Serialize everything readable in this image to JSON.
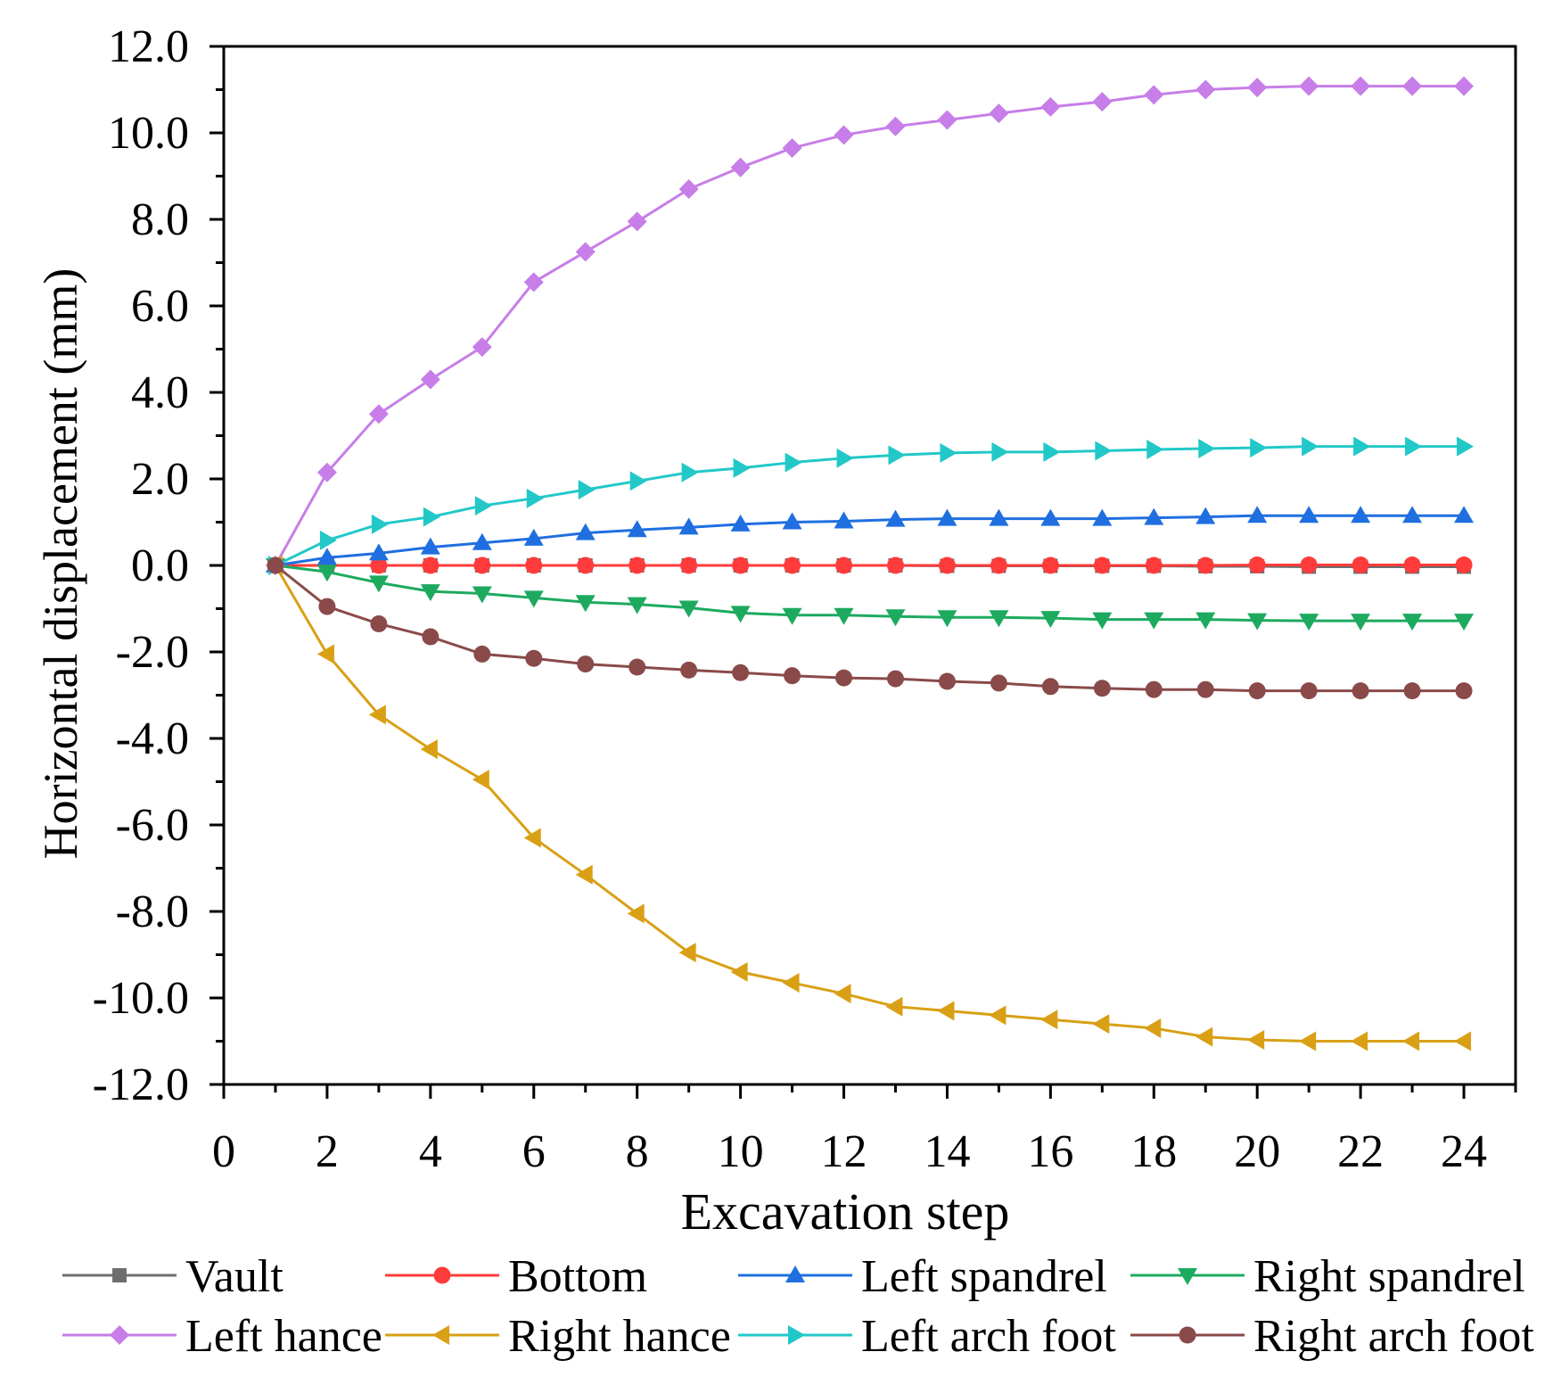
{
  "chart_data": {
    "type": "line",
    "title": "",
    "xlabel": "Excavation step",
    "ylabel": "Horizontal displacement (mm)",
    "xlim": [
      0,
      25
    ],
    "ylim": [
      -12,
      12
    ],
    "x_ticks": [
      0,
      2,
      4,
      6,
      8,
      10,
      12,
      14,
      16,
      18,
      20,
      22,
      24
    ],
    "x_tick_labels": [
      "0",
      "2",
      "4",
      "6",
      "8",
      "10",
      "12",
      "14",
      "16",
      "18",
      "20",
      "22",
      "24"
    ],
    "y_ticks": [
      12,
      10,
      8,
      6,
      4,
      2,
      0,
      -2,
      -4,
      -6,
      -8,
      -10,
      -12
    ],
    "y_tick_labels": [
      "12.0",
      "10.0",
      "8.0",
      "6.0",
      "4.0",
      "2.0",
      "0.0",
      "-2.0",
      "-4.0",
      "-6.0",
      "-8.0",
      "-10.0",
      "-12.0"
    ],
    "grid": false,
    "legend_position": "bottom",
    "x": [
      1,
      2,
      3,
      4,
      5,
      6,
      7,
      8,
      9,
      10,
      11,
      12,
      13,
      14,
      15,
      16,
      17,
      18,
      19,
      20,
      21,
      22,
      23,
      24
    ],
    "series": [
      {
        "name": "Vault",
        "color": "#6e6e6e",
        "marker": "square",
        "values": [
          0,
          0,
          0,
          0,
          0,
          0,
          0,
          0,
          0,
          0,
          0,
          0,
          0,
          -0.01,
          -0.01,
          -0.01,
          -0.01,
          -0.01,
          -0.02,
          -0.02,
          -0.03,
          -0.03,
          -0.03,
          -0.03
        ]
      },
      {
        "name": "Bottom",
        "color": "#ff3b3b",
        "marker": "circle",
        "values": [
          0,
          0,
          0,
          0,
          0,
          0,
          0,
          0,
          0,
          0,
          0,
          0,
          0,
          0,
          0,
          0,
          0,
          0,
          0,
          0.01,
          0.01,
          0.01,
          0.01,
          0.01
        ]
      },
      {
        "name": "Left spandrel",
        "color": "#1f6fe0",
        "marker": "triangle-up",
        "values": [
          0,
          0.18,
          0.28,
          0.42,
          0.52,
          0.62,
          0.75,
          0.82,
          0.88,
          0.95,
          1.0,
          1.02,
          1.06,
          1.08,
          1.08,
          1.08,
          1.08,
          1.1,
          1.12,
          1.15,
          1.15,
          1.15,
          1.15,
          1.15
        ]
      },
      {
        "name": "Right spandrel",
        "color": "#1daa5f",
        "marker": "triangle-down",
        "values": [
          0,
          -0.15,
          -0.4,
          -0.6,
          -0.65,
          -0.75,
          -0.85,
          -0.9,
          -0.98,
          -1.1,
          -1.15,
          -1.15,
          -1.18,
          -1.2,
          -1.2,
          -1.22,
          -1.25,
          -1.25,
          -1.25,
          -1.27,
          -1.28,
          -1.28,
          -1.28,
          -1.28
        ]
      },
      {
        "name": "Left hance",
        "color": "#c77ee8",
        "marker": "diamond",
        "values": [
          0,
          2.15,
          3.5,
          4.3,
          5.05,
          6.55,
          7.25,
          7.95,
          8.7,
          9.2,
          9.65,
          9.95,
          10.15,
          10.3,
          10.45,
          10.6,
          10.72,
          10.88,
          11.0,
          11.05,
          11.08,
          11.08,
          11.08,
          11.08
        ]
      },
      {
        "name": "Right hance",
        "color": "#d9a015",
        "marker": "triangle-left",
        "values": [
          0,
          -2.05,
          -3.45,
          -4.25,
          -4.95,
          -6.3,
          -7.15,
          -8.05,
          -8.95,
          -9.4,
          -9.65,
          -9.9,
          -10.2,
          -10.3,
          -10.4,
          -10.5,
          -10.6,
          -10.7,
          -10.9,
          -10.97,
          -11.0,
          -11.0,
          -11.0,
          -11.0
        ]
      },
      {
        "name": "Left arch foot",
        "color": "#22c8c8",
        "marker": "triangle-right",
        "values": [
          0,
          0.58,
          0.95,
          1.12,
          1.38,
          1.55,
          1.75,
          1.95,
          2.15,
          2.25,
          2.38,
          2.48,
          2.55,
          2.6,
          2.62,
          2.62,
          2.65,
          2.68,
          2.7,
          2.72,
          2.75,
          2.75,
          2.75,
          2.75
        ]
      },
      {
        "name": "Right arch foot",
        "color": "#8a4a4a",
        "marker": "circle",
        "values": [
          0,
          -0.95,
          -1.35,
          -1.65,
          -2.05,
          -2.15,
          -2.28,
          -2.35,
          -2.42,
          -2.48,
          -2.55,
          -2.6,
          -2.62,
          -2.68,
          -2.72,
          -2.8,
          -2.84,
          -2.87,
          -2.87,
          -2.9,
          -2.9,
          -2.9,
          -2.9,
          -2.9
        ]
      }
    ]
  }
}
